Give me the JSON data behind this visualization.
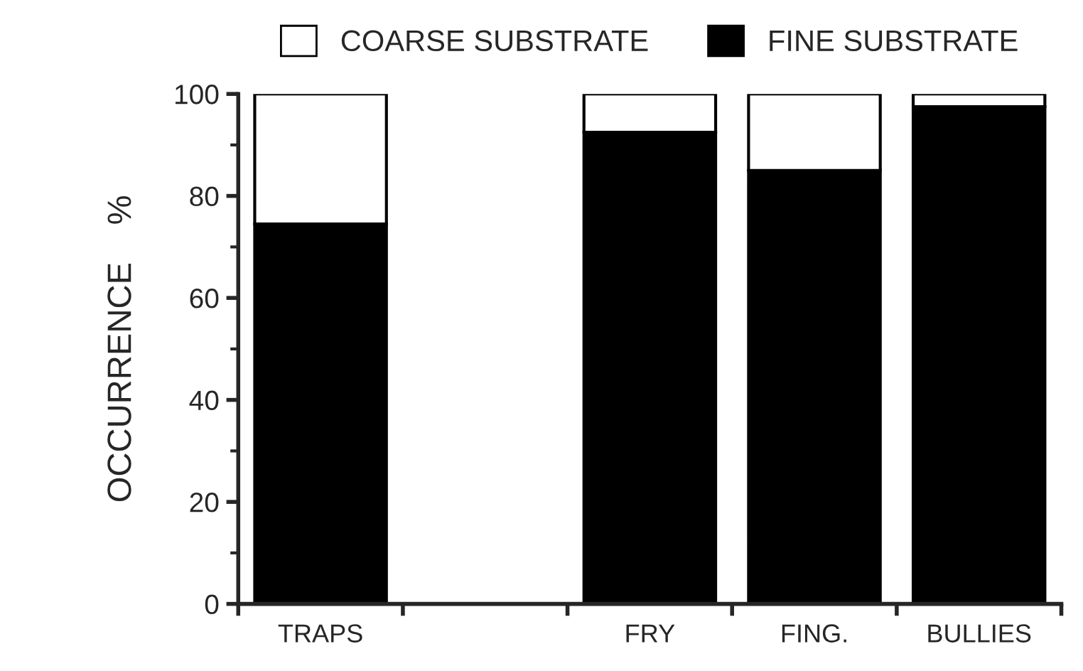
{
  "chart_data": {
    "type": "bar",
    "stacked": true,
    "ylabel": "OCCURRENCE    %",
    "categories": [
      "TRAPS",
      null,
      "FRY",
      "FING.",
      "BULLIES"
    ],
    "series": [
      {
        "name": "FINE SUBSTRATE",
        "color": "#000000",
        "values": [
          74.5,
          null,
          92.5,
          85,
          97.5
        ]
      },
      {
        "name": "COARSE SUBSTRATE",
        "color": "#ffffff",
        "values": [
          25.5,
          null,
          7.5,
          15,
          2.5
        ]
      }
    ],
    "ylim": [
      0,
      100
    ],
    "yticks": [
      0,
      {
        "value": 10,
        "label": null
      },
      20,
      {
        "value": 30,
        "label": null
      },
      40,
      {
        "value": 50,
        "label": null
      },
      60,
      {
        "value": 70,
        "label": null
      },
      80,
      {
        "value": 90,
        "label": null
      },
      100
    ],
    "legend": "top",
    "grid": false
  }
}
